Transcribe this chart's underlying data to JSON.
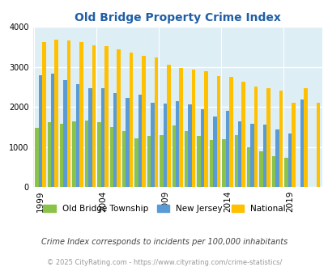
{
  "title": "Old Bridge Property Crime Index",
  "years": [
    1999,
    2000,
    2001,
    2002,
    2003,
    2004,
    2005,
    2006,
    2007,
    2008,
    2009,
    2010,
    2011,
    2012,
    2013,
    2014,
    2015,
    2016,
    2017,
    2018,
    2019,
    2020,
    2021
  ],
  "old_bridge": [
    1480,
    1620,
    1580,
    1630,
    1650,
    1620,
    1490,
    1390,
    1220,
    1280,
    1290,
    1530,
    1390,
    1280,
    1180,
    1200,
    1300,
    1000,
    890,
    760,
    720,
    0,
    0
  ],
  "new_jersey": [
    2780,
    2830,
    2660,
    2560,
    2470,
    2470,
    2350,
    2230,
    2310,
    2100,
    2080,
    2140,
    2070,
    1940,
    1750,
    1900,
    1640,
    1570,
    1560,
    1430,
    1340,
    2190,
    0
  ],
  "national": [
    3620,
    3670,
    3660,
    3610,
    3530,
    3510,
    3440,
    3350,
    3270,
    3230,
    3050,
    2960,
    2920,
    2880,
    2760,
    2750,
    2620,
    2510,
    2470,
    2400,
    2110,
    2460,
    2110
  ],
  "colors": {
    "old_bridge": "#8bc34a",
    "new_jersey": "#5b9bd5",
    "national": "#ffc000"
  },
  "bg_color": "#deeef5",
  "ylim": [
    0,
    4000
  ],
  "yticks": [
    0,
    1000,
    2000,
    3000,
    4000
  ],
  "xtick_years": [
    1999,
    2004,
    2009,
    2014,
    2019
  ],
  "subtitle": "Crime Index corresponds to incidents per 100,000 inhabitants",
  "footer": "© 2025 CityRating.com - https://www.cityrating.com/crime-statistics/",
  "title_color": "#1f5fa6",
  "subtitle_color": "#444444",
  "footer_color": "#999999"
}
